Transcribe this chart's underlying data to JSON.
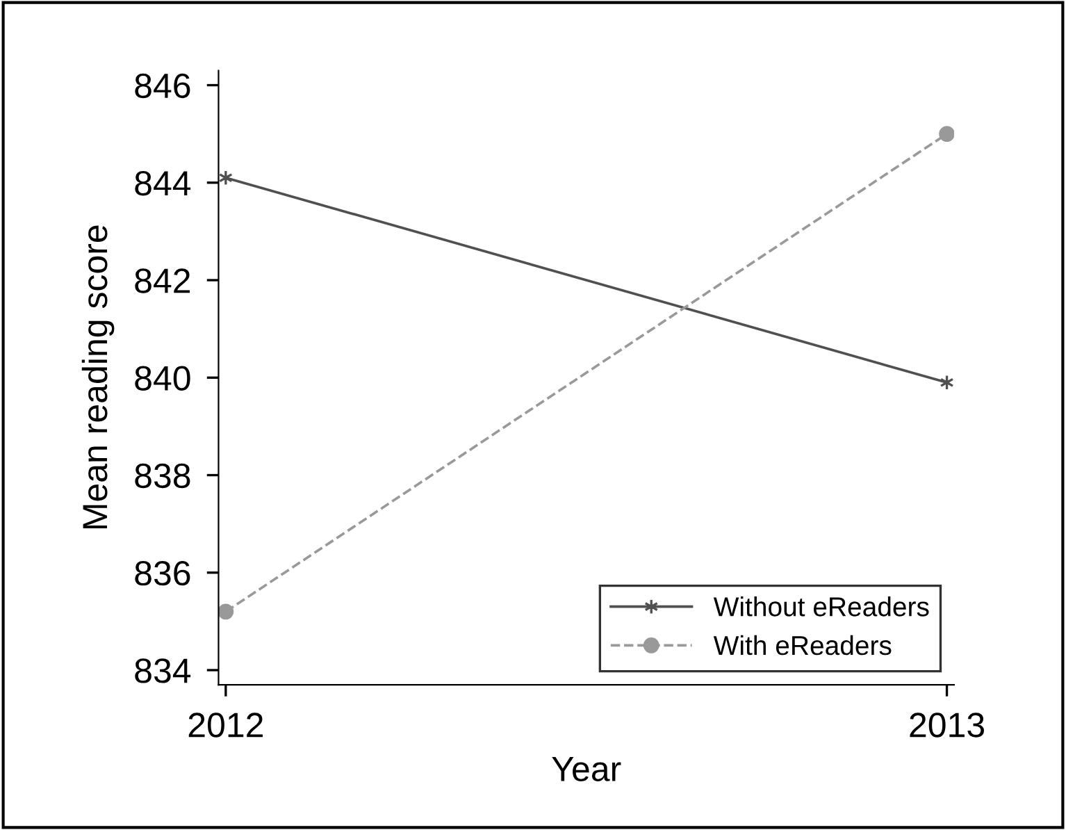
{
  "chart_data": {
    "type": "line",
    "xlabel": "Year",
    "ylabel": "Mean reading score",
    "x": [
      2012,
      2013
    ],
    "xlim": [
      2011.99,
      2013.01
    ],
    "xticks": [
      2012,
      2013
    ],
    "ylim": [
      833.7,
      846.3
    ],
    "yticks": [
      834,
      836,
      838,
      840,
      842,
      844,
      846
    ],
    "series": [
      {
        "name": "Without eReaders",
        "color": "#505050",
        "values": [
          844.1,
          839.9
        ],
        "marker": "cross",
        "line_style": "solid"
      },
      {
        "name": "With eReaders",
        "color": "#999999",
        "values": [
          835.2,
          845.0
        ],
        "marker": "circle",
        "line_style": "dashed"
      }
    ],
    "grid": false,
    "legend": "lower right"
  }
}
